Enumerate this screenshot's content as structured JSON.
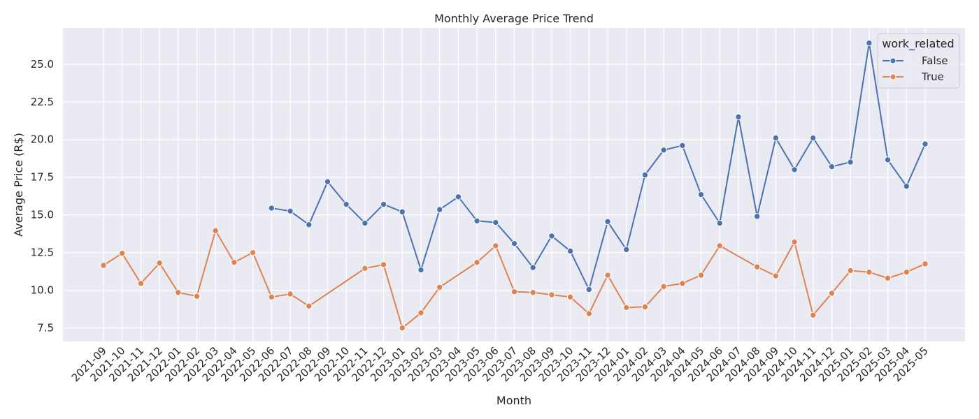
{
  "chart_data": {
    "type": "line",
    "title": "Monthly Average Price Trend",
    "xlabel": "Month",
    "ylabel": "Average Price (R$)",
    "ylim": [
      6.6,
      27.4
    ],
    "yticks": [
      7.5,
      10.0,
      12.5,
      15.0,
      17.5,
      20.0,
      22.5,
      25.0
    ],
    "ytick_labels": [
      "7.5",
      "10.0",
      "12.5",
      "15.0",
      "17.5",
      "20.0",
      "22.5",
      "25.0"
    ],
    "grid": true,
    "legend": {
      "title": "work_related",
      "placement": "top-right"
    },
    "categories": [
      "2021-09",
      "2021-10",
      "2021-11",
      "2021-12",
      "2022-01",
      "2022-02",
      "2022-03",
      "2022-04",
      "2022-05",
      "2022-06",
      "2022-07",
      "2022-08",
      "2022-09",
      "2022-10",
      "2022-11",
      "2022-12",
      "2023-01",
      "2023-02",
      "2023-03",
      "2023-04",
      "2023-05",
      "2023-06",
      "2023-07",
      "2023-08",
      "2023-09",
      "2023-10",
      "2023-11",
      "2023-12",
      "2024-01",
      "2024-02",
      "2024-03",
      "2024-04",
      "2024-05",
      "2024-06",
      "2024-07",
      "2024-08",
      "2024-09",
      "2024-10",
      "2024-11",
      "2024-12",
      "2025-01",
      "2025-02",
      "2025-03",
      "2025-04",
      "2025-05"
    ],
    "series": [
      {
        "name": "False",
        "color": "#4c72b0",
        "values": [
          null,
          null,
          null,
          null,
          null,
          null,
          null,
          null,
          null,
          15.45,
          15.25,
          14.35,
          17.2,
          15.7,
          14.45,
          15.7,
          15.2,
          11.35,
          15.35,
          16.2,
          14.6,
          14.5,
          13.1,
          11.5,
          13.6,
          12.6,
          10.05,
          14.55,
          12.7,
          17.65,
          19.3,
          19.6,
          16.35,
          14.45,
          21.5,
          14.9,
          20.1,
          18.0,
          20.1,
          18.2,
          18.5,
          26.4,
          18.65,
          16.9,
          19.7
        ]
      },
      {
        "name": "True",
        "color": "#dd8452",
        "values": [
          11.65,
          12.45,
          10.45,
          11.8,
          9.85,
          9.6,
          13.95,
          11.85,
          12.5,
          9.55,
          9.75,
          8.95,
          null,
          null,
          11.45,
          11.7,
          7.5,
          8.5,
          10.2,
          null,
          11.85,
          12.95,
          9.9,
          9.85,
          9.7,
          9.55,
          8.45,
          11.0,
          8.85,
          8.9,
          10.25,
          10.45,
          11.0,
          12.95,
          null,
          11.55,
          10.95,
          13.2,
          8.35,
          9.8,
          11.3,
          11.2,
          10.8,
          11.2,
          11.75
        ]
      }
    ]
  }
}
